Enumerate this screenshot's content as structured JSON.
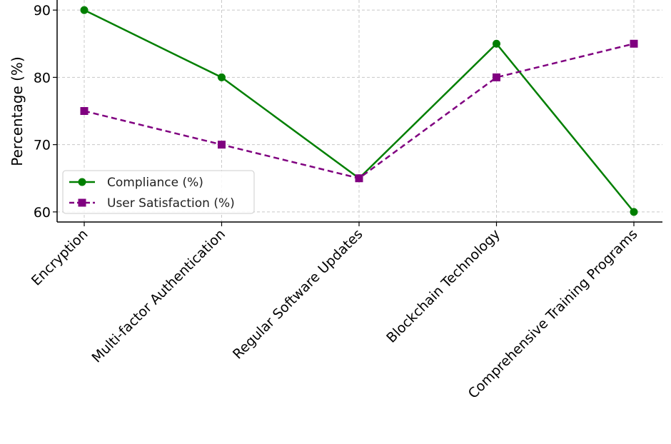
{
  "chart_data": {
    "type": "line",
    "title": "",
    "xlabel": "",
    "ylabel": "Percentage (%)",
    "categories": [
      "Encryption",
      "Multi-factor Authentication",
      "Regular Software Updates",
      "Blockchain Technology",
      "Comprehensive Training Programs"
    ],
    "series": [
      {
        "name": "Compliance (%)",
        "values": [
          90,
          80,
          65,
          85,
          60
        ],
        "color": "#007f00",
        "line_style": "solid",
        "marker": "circle"
      },
      {
        "name": "User Satisfaction (%)",
        "values": [
          75,
          70,
          65,
          80,
          85
        ],
        "color": "#800080",
        "line_style": "dashed",
        "marker": "square"
      }
    ],
    "ylim": [
      58.5,
      91.5
    ],
    "yticks": [
      60,
      70,
      80,
      90
    ],
    "grid": true,
    "legend_position": "center-left"
  }
}
